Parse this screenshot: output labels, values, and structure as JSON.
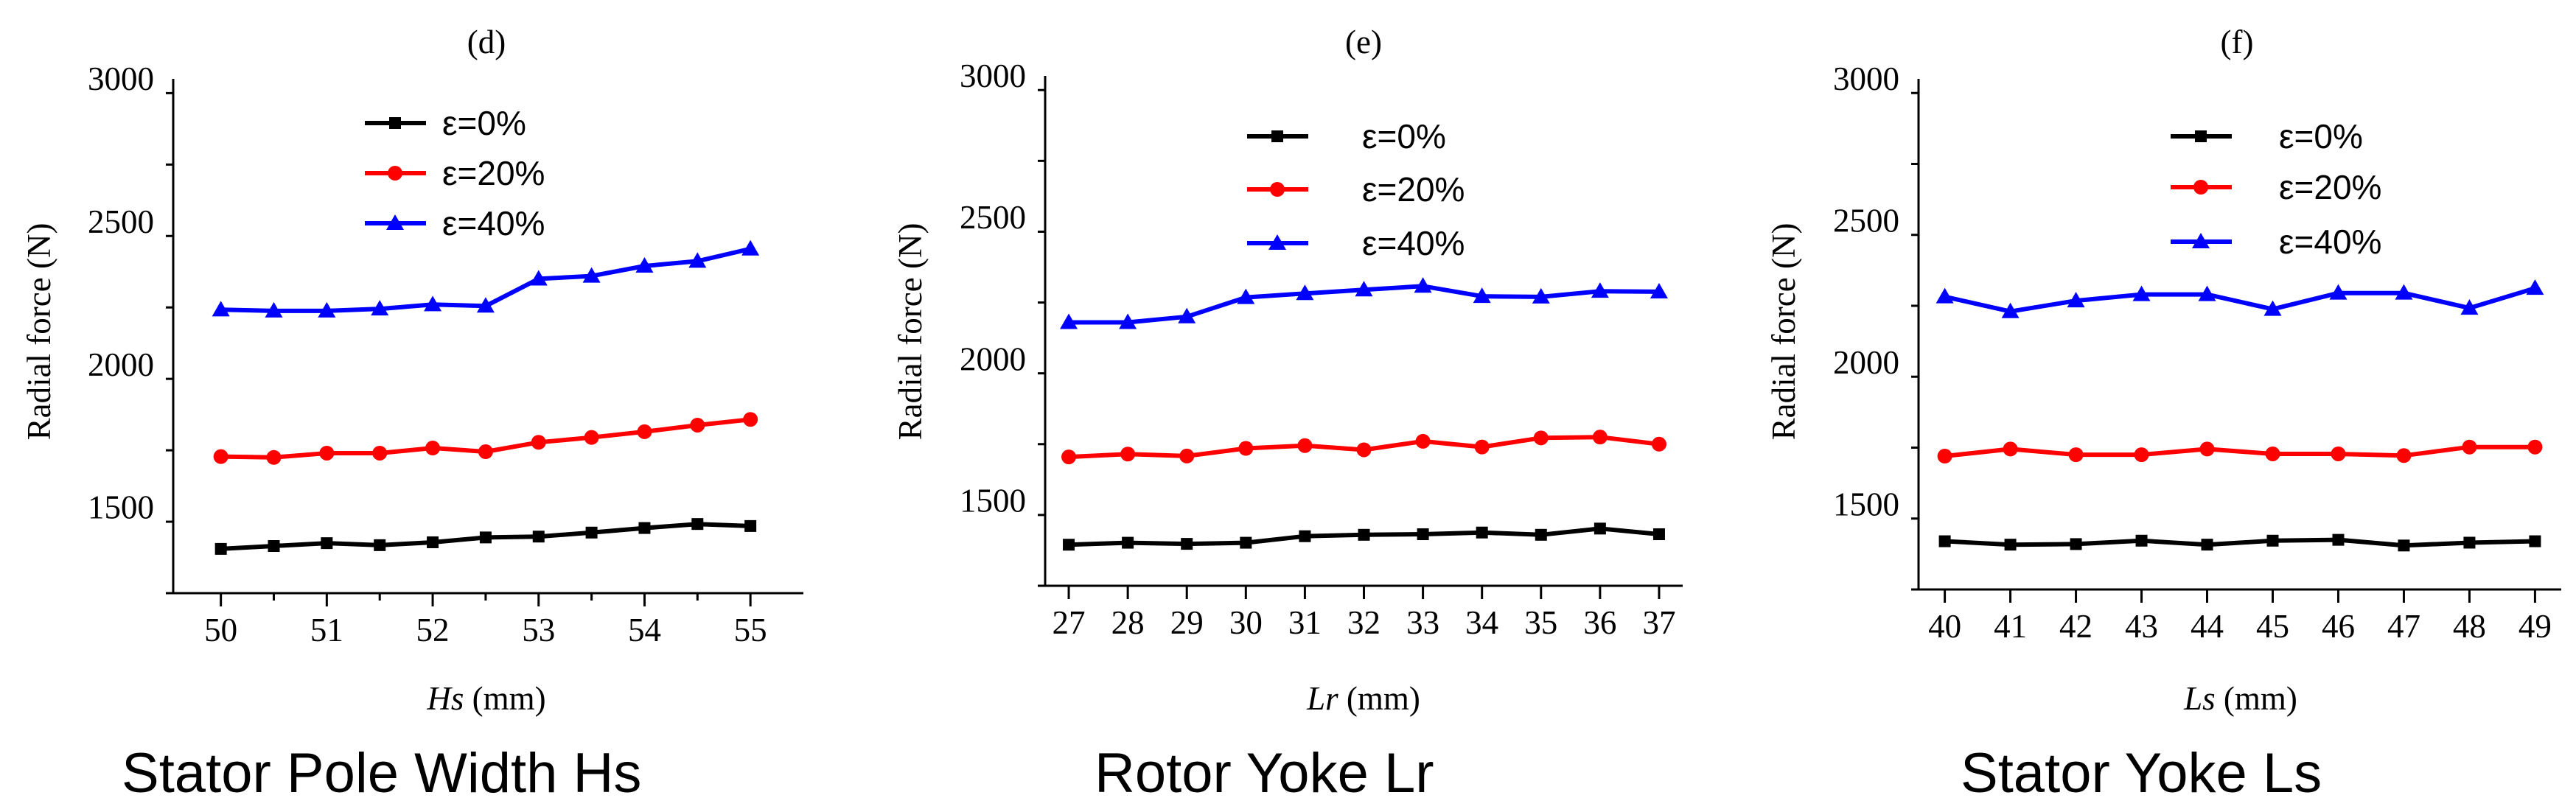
{
  "chart_data": [
    {
      "type": "line",
      "title": "(d)",
      "caption": "Stator Pole Width Hs",
      "xlabel_var": "Hs",
      "xlabel_unit": " (mm)",
      "ylabel": "Radial force (N)",
      "x": [
        50,
        50.5,
        51,
        51.5,
        52,
        52.5,
        53,
        53.5,
        54,
        54.5,
        55
      ],
      "xticks": [
        50,
        51,
        52,
        53,
        54,
        55
      ],
      "xticklabels": [
        "50",
        "51",
        "52",
        "53",
        "54",
        "55"
      ],
      "xlim": [
        49.55,
        55.5
      ],
      "yticks": [
        1500,
        2000,
        2500,
        3000
      ],
      "yticklabels": [
        "1500",
        "2000",
        "2500",
        "3000"
      ],
      "ylim": [
        1200,
        3000
      ],
      "legend_position": "top-center",
      "series": [
        {
          "name": "ε=0%",
          "color": "#000000",
          "marker": "square",
          "values": [
            1355,
            1365,
            1375,
            1368,
            1378,
            1395,
            1398,
            1412,
            1428,
            1442,
            1435
          ]
        },
        {
          "name": "ε=20%",
          "color": "#ff0000",
          "marker": "circle",
          "values": [
            1678,
            1675,
            1690,
            1690,
            1708,
            1695,
            1728,
            1745,
            1765,
            1788,
            1808
          ]
        },
        {
          "name": "ε=40%",
          "color": "#0000ff",
          "marker": "triangle",
          "values": [
            2192,
            2188,
            2188,
            2195,
            2210,
            2205,
            2300,
            2310,
            2345,
            2362,
            2405
          ]
        }
      ]
    },
    {
      "type": "line",
      "title": "(e)",
      "caption": "Rotor Yoke Lr",
      "xlabel_var": "Lr",
      "xlabel_unit": " (mm)",
      "ylabel": "Radial force (N)",
      "x": [
        27,
        28,
        29,
        30,
        31,
        32,
        33,
        34,
        35,
        36,
        37
      ],
      "xticks": [
        27,
        28,
        29,
        30,
        31,
        32,
        33,
        34,
        35,
        36,
        37
      ],
      "xticklabels": [
        "27",
        "28",
        "29",
        "30",
        "31",
        "32",
        "33",
        "34",
        "35",
        "36",
        "37"
      ],
      "xlim": [
        26.6,
        37.4
      ],
      "yticks": [
        1500,
        2000,
        2500,
        3000
      ],
      "yticklabels": [
        "1500",
        "2000",
        "2500",
        "3000"
      ],
      "ylim": [
        1200,
        3000
      ],
      "legend_position": "top-right",
      "series": [
        {
          "name": "ε=0%",
          "color": "#000000",
          "marker": "square",
          "values": [
            1345,
            1352,
            1348,
            1352,
            1375,
            1380,
            1382,
            1388,
            1380,
            1402,
            1382
          ]
        },
        {
          "name": "ε=20%",
          "color": "#ff0000",
          "marker": "circle",
          "values": [
            1655,
            1665,
            1658,
            1685,
            1695,
            1680,
            1710,
            1690,
            1722,
            1725,
            1700
          ]
        },
        {
          "name": "ε=40%",
          "color": "#0000ff",
          "marker": "triangle",
          "values": [
            2130,
            2130,
            2150,
            2218,
            2232,
            2245,
            2258,
            2222,
            2220,
            2240,
            2238
          ]
        }
      ]
    },
    {
      "type": "line",
      "title": "(f)",
      "caption": "Stator Yoke Ls",
      "xlabel_var": "Ls",
      "xlabel_unit": " (mm)",
      "ylabel": "Radial force (N)",
      "x": [
        40,
        41,
        42,
        43,
        44,
        45,
        46,
        47,
        48,
        49
      ],
      "xticks": [
        40,
        41,
        42,
        43,
        44,
        45,
        46,
        47,
        48,
        49
      ],
      "xticklabels": [
        "40",
        "41",
        "42",
        "43",
        "44",
        "45",
        "46",
        "47",
        "48",
        "49"
      ],
      "xlim": [
        39.6,
        49.4
      ],
      "yticks": [
        1500,
        2000,
        2500,
        3000
      ],
      "yticklabels": [
        "1500",
        "2000",
        "2500",
        "3000"
      ],
      "ylim": [
        1200,
        3000
      ],
      "legend_position": "top-right",
      "series": [
        {
          "name": "ε=0%",
          "color": "#000000",
          "marker": "square",
          "values": [
            1370,
            1358,
            1360,
            1372,
            1358,
            1372,
            1375,
            1355,
            1365,
            1370
          ]
        },
        {
          "name": "ε=20%",
          "color": "#ff0000",
          "marker": "circle",
          "values": [
            1670,
            1695,
            1675,
            1675,
            1695,
            1678,
            1678,
            1672,
            1702,
            1702
          ]
        },
        {
          "name": "ε=40%",
          "color": "#0000ff",
          "marker": "triangle",
          "values": [
            2232,
            2180,
            2218,
            2240,
            2240,
            2188,
            2245,
            2245,
            2192,
            2262
          ]
        }
      ]
    }
  ]
}
